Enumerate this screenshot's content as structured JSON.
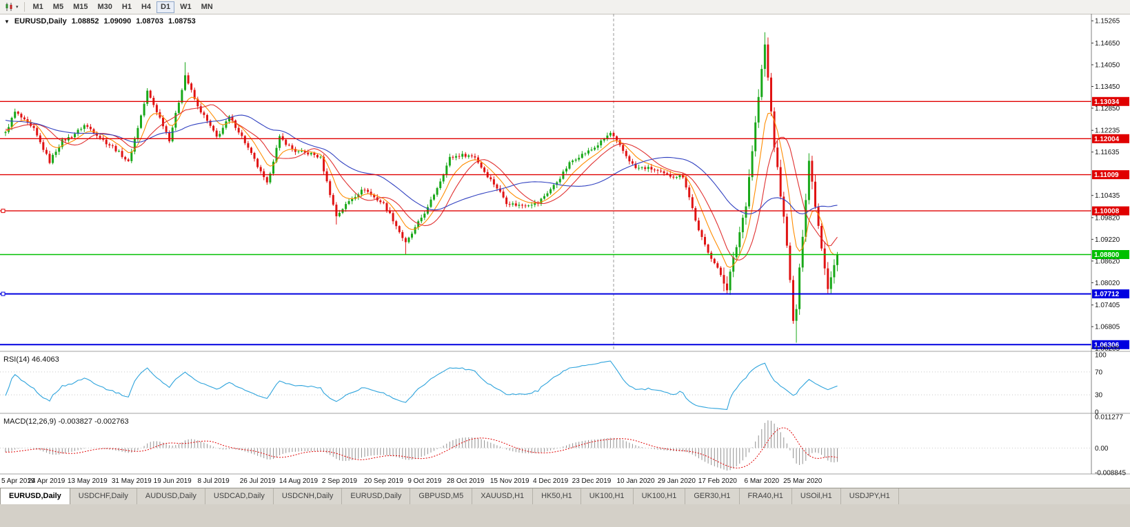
{
  "toolbar": {
    "timeframes": [
      "M1",
      "M5",
      "M15",
      "M30",
      "H1",
      "H4",
      "D1",
      "W1",
      "MN"
    ],
    "active_timeframe": "D1"
  },
  "chart_header": {
    "symbol": "EURUSD,Daily",
    "open": "1.08852",
    "high": "1.09090",
    "low": "1.08703",
    "close": "1.08753"
  },
  "tabs": {
    "items": [
      "EURUSD,Daily",
      "USDCHF,Daily",
      "AUDUSD,Daily",
      "USDCAD,Daily",
      "USDCNH,Daily",
      "EURUSD,Daily",
      "GBPUSD,M5",
      "XAUUSD,H1",
      "HK50,H1",
      "UK100,H1",
      "UK100,H1",
      "GER30,H1",
      "FRA40,H1",
      "USOil,H1",
      "USDJPY,H1"
    ],
    "active_index": 0
  },
  "chart_data": {
    "type": "candlestick",
    "symbol": "EURUSD",
    "timeframe": "Daily",
    "y_axis": {
      "price_top": 1.1546,
      "price_bottom": 1.0616,
      "ticks": [
        "1.15265",
        "1.14650",
        "1.14050",
        "1.13450",
        "1.12850",
        "1.12235",
        "1.11635",
        "1.10435",
        "1.09820",
        "1.09220",
        "1.08620",
        "1.08020",
        "1.07405",
        "1.06805",
        "1.06205"
      ]
    },
    "x_axis": {
      "labels": [
        "5 Apr 2019",
        "24 Apr 2019",
        "13 May 2019",
        "31 May 2019",
        "19 Jun 2019",
        "8 Jul 2019",
        "26 Jul 2019",
        "14 Aug 2019",
        "2 Sep 2019",
        "20 Sep 2019",
        "9 Oct 2019",
        "28 Oct 2019",
        "15 Nov 2019",
        "4 Dec 2019",
        "23 Dec 2019",
        "10 Jan 2020",
        "29 Jan 2020",
        "17 Feb 2020",
        "6 Mar 2020",
        "25 Mar 2020"
      ],
      "label_days": [
        0,
        13,
        26,
        40,
        53,
        66,
        80,
        93,
        106,
        120,
        133,
        146,
        160,
        173,
        186,
        200,
        213,
        226,
        240,
        253
      ]
    },
    "candles_count": 265,
    "up_color": "#19a819",
    "down_color": "#e01313",
    "price_anchors": [
      [
        0,
        1.1216
      ],
      [
        3,
        1.127
      ],
      [
        9,
        1.123
      ],
      [
        14,
        1.1133
      ],
      [
        18,
        1.1195
      ],
      [
        25,
        1.1235
      ],
      [
        34,
        1.1181
      ],
      [
        39,
        1.1131
      ],
      [
        45,
        1.1335
      ],
      [
        52,
        1.1195
      ],
      [
        57,
        1.138
      ],
      [
        61,
        1.1285
      ],
      [
        67,
        1.1208
      ],
      [
        71,
        1.126
      ],
      [
        79,
        1.1145
      ],
      [
        83,
        1.1075
      ],
      [
        87,
        1.12
      ],
      [
        92,
        1.117
      ],
      [
        100,
        1.1145
      ],
      [
        105,
        1.099
      ],
      [
        114,
        1.1065
      ],
      [
        120,
        1.1017
      ],
      [
        127,
        1.0915
      ],
      [
        134,
        1.1005
      ],
      [
        141,
        1.115
      ],
      [
        149,
        1.1152
      ],
      [
        159,
        1.1022
      ],
      [
        169,
        1.1018
      ],
      [
        179,
        1.113
      ],
      [
        192,
        1.1212
      ],
      [
        200,
        1.1122
      ],
      [
        215,
        1.1094
      ],
      [
        220,
        1.0946
      ],
      [
        229,
        1.0785
      ],
      [
        235,
        1.1026
      ],
      [
        241,
        1.1456
      ],
      [
        244,
        1.1184
      ],
      [
        248,
        1.0915
      ],
      [
        250,
        1.069
      ],
      [
        251,
        1.0727
      ],
      [
        255,
        1.1141
      ],
      [
        258,
        1.0965
      ],
      [
        261,
        1.0791
      ],
      [
        264,
        1.0875
      ]
    ],
    "extremes": [
      {
        "day": 57,
        "high": 1.1412
      },
      {
        "day": 105,
        "low": 1.0963
      },
      {
        "day": 127,
        "low": 1.0879
      },
      {
        "day": 241,
        "high": 1.1495
      },
      {
        "day": 251,
        "low": 1.0636
      }
    ],
    "hlines": [
      {
        "price": 1.13034,
        "color": "#e00000",
        "width": 1.4,
        "tag": "1.13034",
        "handle": false
      },
      {
        "price": 1.12004,
        "color": "#e00000",
        "width": 1.4,
        "tag": "1.12004",
        "handle": false
      },
      {
        "price": 1.11009,
        "color": "#e00000",
        "width": 1.4,
        "tag": "1.11009",
        "handle": false
      },
      {
        "price": 1.10008,
        "color": "#e00000",
        "width": 1.4,
        "tag": "1.10008",
        "handle": true
      },
      {
        "price": 1.088,
        "color": "#00c000",
        "width": 1.6,
        "tag": "1.08800",
        "handle": false
      },
      {
        "price": 1.07712,
        "color": "#0000e0",
        "width": 2,
        "tag": "1.07712",
        "handle": true
      },
      {
        "price": 1.06306,
        "color": "#0000e0",
        "width": 2,
        "tag": "1.06306",
        "handle": false
      }
    ],
    "moving_averages": [
      {
        "type": "ema",
        "period": 8,
        "color": "#ff8c00"
      },
      {
        "type": "sma",
        "period": 13,
        "color": "#e03030"
      },
      {
        "type": "sma",
        "period": 34,
        "color": "#3040c0"
      }
    ],
    "separator_day": 193,
    "rsi": {
      "label": "RSI(14) 46.4063",
      "period": 14,
      "color": "#2da3dc",
      "levels": [
        70,
        30
      ],
      "axis_ticks": [
        100,
        70,
        30,
        0
      ]
    },
    "macd": {
      "label": "MACD(12,26,9) -0.003827 -0.002763",
      "fast": 12,
      "slow": 26,
      "signal": 9,
      "hist_color": "#909090",
      "signal_color": "#e00000",
      "axis_ticks": [
        "0.011277",
        "0.00",
        "-0.008845"
      ],
      "value_max": 0.011277,
      "value_min": -0.008845
    }
  }
}
